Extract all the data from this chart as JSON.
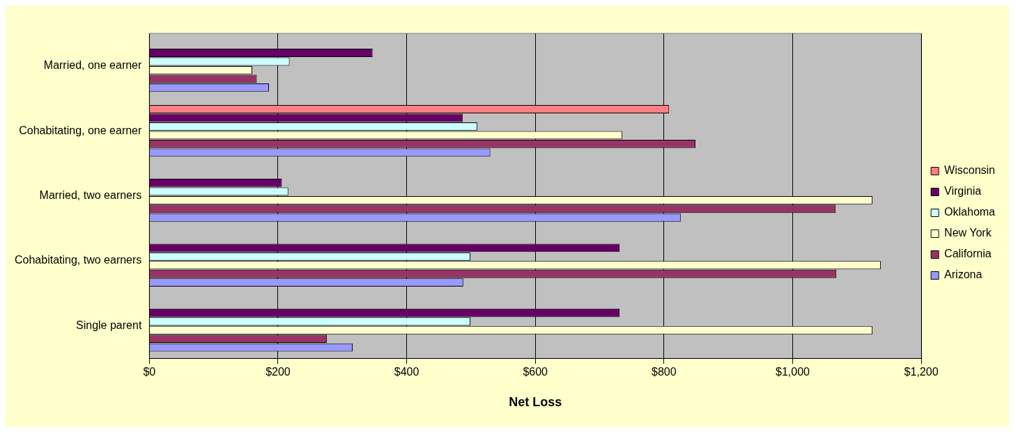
{
  "chart_data": {
    "type": "bar",
    "orientation": "horizontal",
    "xlabel": "Net Loss",
    "categories": [
      "Married, one earner",
      "Cohabitating, one earner",
      "Married, two earners",
      "Cohabitating, two earners",
      "Single parent"
    ],
    "series": [
      {
        "name": "Wisconsin",
        "color": "#ff8080",
        "values": [
          0,
          808,
          0,
          0,
          0
        ]
      },
      {
        "name": "Virginia",
        "color": "#660066",
        "values": [
          347,
          487,
          206,
          731,
          731
        ]
      },
      {
        "name": "Oklahoma",
        "color": "#ccffff",
        "values": [
          218,
          510,
          216,
          499,
          499
        ]
      },
      {
        "name": "New York",
        "color": "#ffffcc",
        "values": [
          160,
          735,
          1124,
          1137,
          1124
        ]
      },
      {
        "name": "California",
        "color": "#993366",
        "values": [
          167,
          849,
          1067,
          1068,
          276
        ]
      },
      {
        "name": "Arizona",
        "color": "#9999ff",
        "values": [
          186,
          530,
          826,
          488,
          316
        ]
      }
    ],
    "xlim": [
      0,
      1200
    ],
    "xticks": [
      {
        "value": 0,
        "label": "$0"
      },
      {
        "value": 200,
        "label": "$200"
      },
      {
        "value": 400,
        "label": "$400"
      },
      {
        "value": 600,
        "label": "$600"
      },
      {
        "value": 800,
        "label": "$800"
      },
      {
        "value": 1000,
        "label": "$1,000"
      },
      {
        "value": 1200,
        "label": "$1,200"
      }
    ],
    "grid": "x",
    "legend": "right"
  }
}
